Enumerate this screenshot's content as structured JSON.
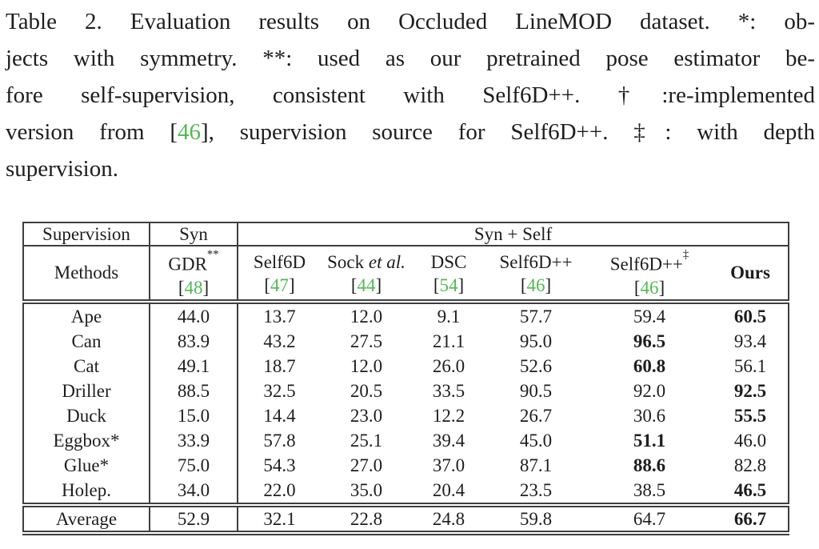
{
  "caption": {
    "lines": [
      {
        "text": "Table 2. Evaluation results on Occluded LineMOD dataset. *: ob-"
      },
      {
        "text": "jects with symmetry. **: used as our pretrained pose estimator be-"
      },
      {
        "text": "fore self-supervision, consistent with Self6D++. †:re-implemented"
      },
      {
        "pre": "version from [",
        "ref": "46",
        "post": "], supervision source for Self6D++. ‡: with depth"
      },
      {
        "text": "supervision."
      }
    ]
  },
  "colors": {
    "citation_green": "#53b855",
    "text": "#1e1e1e",
    "rule": "#3f3f3f"
  },
  "table": {
    "header_row1": {
      "supervision": "Supervision",
      "syn": "Syn",
      "syn_self": "Syn + Self"
    },
    "header_row2": {
      "methods": "Methods",
      "columns": [
        {
          "key": "gdr",
          "name": "GDR",
          "sup": "**",
          "cite_open": "[",
          "cite_num": "48",
          "cite_close": "]"
        },
        {
          "key": "self6d",
          "name": "Self6D",
          "cite_open": "[",
          "cite_num": "47",
          "cite_close": "]"
        },
        {
          "key": "sock-et-al",
          "name": "Sock ",
          "name_italic": "et al.",
          "cite_open": "[",
          "cite_num": "44",
          "cite_close": "]"
        },
        {
          "key": "dsc",
          "name": "DSC",
          "cite_open": "[",
          "cite_num": "54",
          "cite_close": "]"
        },
        {
          "key": "self6dpp",
          "name": "Self6D++",
          "cite_open": "[",
          "cite_num": "46",
          "cite_close": "]"
        },
        {
          "key": "self6dpp-depth",
          "name": "Self6D++",
          "sup": "‡",
          "cite_open": "[",
          "cite_num": "46",
          "cite_close": "]"
        },
        {
          "key": "ours",
          "name": "Ours",
          "bold": true
        }
      ]
    },
    "rows": [
      {
        "name": "Ape",
        "values": [
          "44.0",
          "13.7",
          "12.0",
          "9.1",
          "57.7",
          "59.4",
          "60.5"
        ],
        "bold": 6
      },
      {
        "name": "Can",
        "values": [
          "83.9",
          "43.2",
          "27.5",
          "21.1",
          "95.0",
          "96.5",
          "93.4"
        ],
        "bold": 5
      },
      {
        "name": "Cat",
        "values": [
          "49.1",
          "18.7",
          "12.0",
          "26.0",
          "52.6",
          "60.8",
          "56.1"
        ],
        "bold": 5
      },
      {
        "name": "Driller",
        "values": [
          "88.5",
          "32.5",
          "20.5",
          "33.5",
          "90.5",
          "92.0",
          "92.5"
        ],
        "bold": 6
      },
      {
        "name": "Duck",
        "values": [
          "15.0",
          "14.4",
          "23.0",
          "12.2",
          "26.7",
          "30.6",
          "55.5"
        ],
        "bold": 6
      },
      {
        "name": "Eggbox*",
        "values": [
          "33.9",
          "57.8",
          "25.1",
          "39.4",
          "45.0",
          "51.1",
          "46.0"
        ],
        "bold": 5
      },
      {
        "name": "Glue*",
        "values": [
          "75.0",
          "54.3",
          "27.0",
          "37.0",
          "87.1",
          "88.6",
          "82.8"
        ],
        "bold": 5
      },
      {
        "name": "Holep.",
        "values": [
          "34.0",
          "22.0",
          "35.0",
          "20.4",
          "23.5",
          "38.5",
          "46.5"
        ],
        "bold": 6
      },
      {
        "name": "Average",
        "values": [
          "52.9",
          "32.1",
          "22.8",
          "24.8",
          "59.8",
          "64.7",
          "66.7"
        ],
        "bold": 6,
        "avg": true
      }
    ]
  }
}
